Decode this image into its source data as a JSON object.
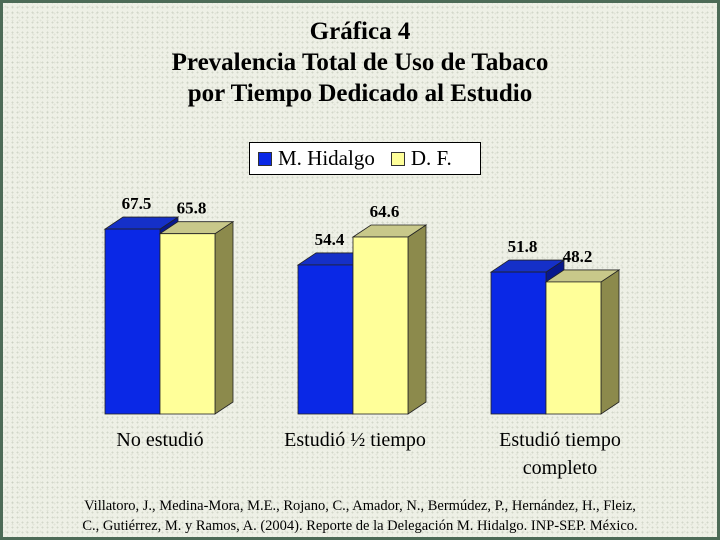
{
  "chart_data": {
    "type": "bar",
    "title_lines": [
      "Gráfica 4",
      "Prevalencia Total de Uso de Tabaco",
      "por Tiempo Dedicado al Estudio"
    ],
    "categories": [
      "No estudió",
      "Estudió ½ tiempo",
      "Estudió tiempo completo"
    ],
    "category_lines": [
      [
        "No estudió"
      ],
      [
        "Estudió ½ tiempo"
      ],
      [
        "Estudió tiempo",
        "completo"
      ]
    ],
    "series": [
      {
        "name": "M. Hidalgo",
        "values": [
          67.5,
          54.4,
          51.8
        ],
        "labels": [
          "67.5",
          "54.4",
          "51.8"
        ],
        "color": "#0a28e6",
        "side_color": "#08188c",
        "top_color": "#1530c8"
      },
      {
        "name": "D. F.",
        "values": [
          65.8,
          64.6,
          48.2
        ],
        "labels": [
          "65.8",
          "64.6",
          "48.2"
        ],
        "color": "#ffff99",
        "side_color": "#8c8a4c",
        "top_color": "#c8c88a"
      }
    ],
    "three_d": true,
    "legend_position": "top-center",
    "grid": false
  },
  "source": {
    "line1": "Villatoro, J., Medina-Mora, M.E., Rojano, C., Amador, N., Bermúdez, P., Hernández, H., Fleiz,",
    "line2": "C., Gutiérrez, M. y Ramos, A. (2004). Reporte de la Delegación M. Hidalgo. INP-SEP. México."
  }
}
